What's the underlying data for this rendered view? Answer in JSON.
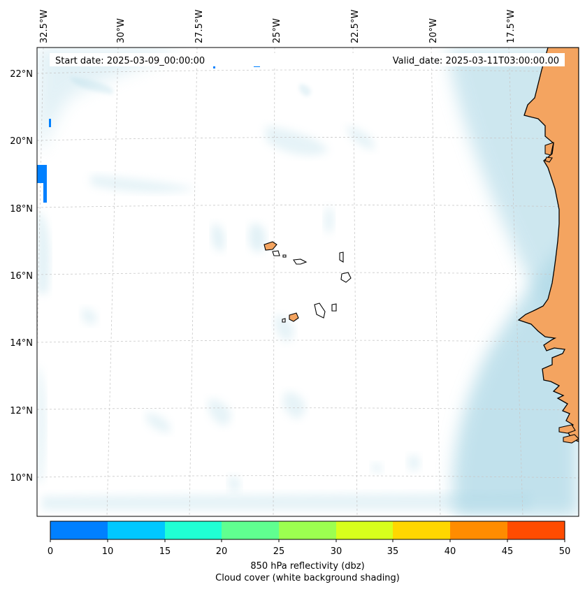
{
  "header": {
    "start_date": "Start date: 2025-03-09_00:00:00",
    "valid_date": "Valid_date: 2025-03-11T03:00:00.00"
  },
  "map": {
    "longitude_labels": [
      "32.5°W",
      "30°W",
      "27.5°W",
      "25°W",
      "22.5°W",
      "20°W",
      "17.5°W"
    ],
    "latitude_labels": [
      "22°N",
      "20°N",
      "18°N",
      "16°N",
      "14°N",
      "12°N",
      "10°N"
    ],
    "land_color": "#f4a460",
    "coastline_color": "#000000",
    "cloud_color": "#add8e6",
    "gridlines": true
  },
  "colorbar": {
    "ticks": [
      "0",
      "10",
      "15",
      "20",
      "25",
      "30",
      "35",
      "40",
      "45",
      "50"
    ],
    "colors": [
      "#0080ff",
      "#00c8ff",
      "#20ffd4",
      "#60ff90",
      "#9cff50",
      "#d8ff1c",
      "#ffd700",
      "#ff8c00",
      "#ff4c00"
    ],
    "caption_line1": "850 hPa reflectivity (dbz)",
    "caption_line2": "Cloud cover (white background shading)"
  }
}
